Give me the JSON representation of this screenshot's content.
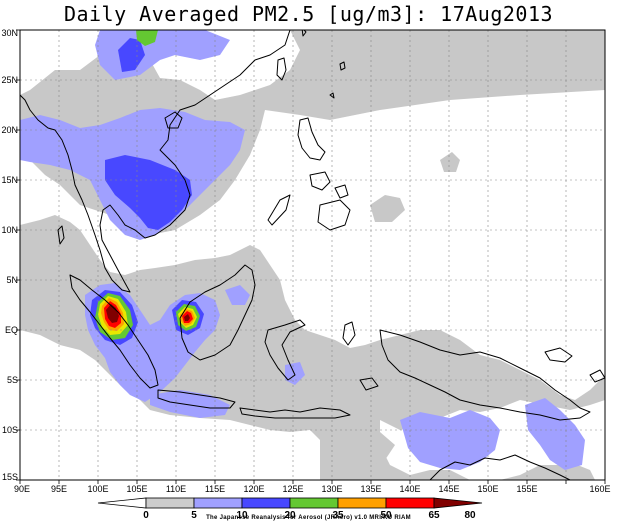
{
  "title": "Daily Averaged PM2.5 [ug/m3]: 17Aug2013",
  "axes": {
    "lon_labels": [
      "90E",
      "95E",
      "100E",
      "105E",
      "110E",
      "115E",
      "120E",
      "125E",
      "130E",
      "135E",
      "140E",
      "145E",
      "150E",
      "155E",
      "160E"
    ],
    "lat_labels": [
      "30N",
      "25N",
      "20N",
      "15N",
      "10N",
      "5N",
      "EQ",
      "5S",
      "10S",
      "15S"
    ]
  },
  "colorbar": {
    "ticks": [
      "0",
      "5",
      "10",
      "20",
      "35",
      "50",
      "65",
      "80"
    ],
    "colors": [
      "#ffffff",
      "#cccccc",
      "#a0a0ff",
      "#4848ff",
      "#64c832",
      "#ffa000",
      "#ff0000",
      "#800000"
    ]
  },
  "colors": {
    "land_grey": "#c8c8c8",
    "lavender": "#a0a0ff",
    "blue": "#4848ff",
    "green": "#64c832",
    "orange": "#ffa000",
    "red": "#ff0000",
    "darkred": "#800000",
    "yellow": "#e8e800"
  },
  "credit": "The Japanese Reanalysis for Aerosol (JRAero) v1.0 MRI/KU RIAM"
}
